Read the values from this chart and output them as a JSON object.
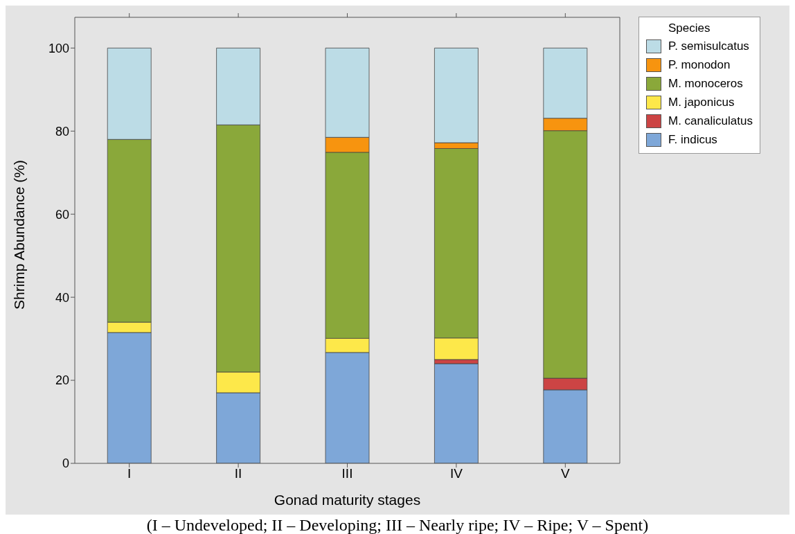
{
  "chart_data": {
    "type": "bar",
    "stacked": true,
    "xlabel": "Gonad maturity stages",
    "ylabel": "Shrimp Abundance (%)",
    "legend_title": "Species",
    "legend": "top right",
    "categories": [
      "I",
      "II",
      "III",
      "IV",
      "V"
    ],
    "series": [
      {
        "name": "F. indicus",
        "color": "#7ea7d8",
        "values": [
          31.5,
          17,
          26.7,
          24,
          17.7
        ]
      },
      {
        "name": "M. canaliculatus",
        "color": "#cc4444",
        "values": [
          0,
          0,
          0,
          1,
          2.8
        ]
      },
      {
        "name": "M. japonicus",
        "color": "#fde84a",
        "values": [
          2.5,
          5,
          3.4,
          5.2,
          0
        ]
      },
      {
        "name": "M. monoceros",
        "color": "#8aa83a",
        "values": [
          44,
          59.5,
          44.8,
          45.6,
          59.6
        ]
      },
      {
        "name": "P. monodon",
        "color": "#f7940f",
        "values": [
          0,
          0,
          3.6,
          1.4,
          3
        ]
      },
      {
        "name": "P. semisulcatus",
        "color": "#bcdce6",
        "values": [
          22,
          18.5,
          21.5,
          22.8,
          16.9
        ]
      }
    ],
    "ylim": [
      0,
      107.4
    ],
    "yticks": [
      0,
      20,
      40,
      60,
      80,
      100
    ],
    "grid": false,
    "annotations": [
      "(I – Undeveloped; II – Developing; III – Nearly ripe; IV – Ripe; V – Spent)"
    ]
  }
}
